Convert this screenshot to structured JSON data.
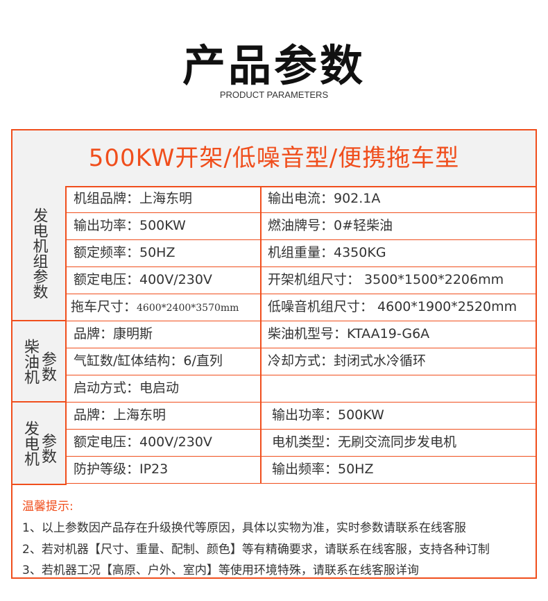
{
  "header": {
    "title": "产品参数",
    "subtitle": "PRODUCT PARAMETERS"
  },
  "table": {
    "heading": "500KW开架/低噪音型/便携拖车型",
    "groups": [
      {
        "label": "发电机组参数",
        "rows": [
          [
            "机组品牌：上海东明",
            "输出电流：902.1A"
          ],
          [
            "输出功率：500KW",
            "燃油牌号：0#轻柴油"
          ],
          [
            "额定频率：50HZ",
            "机组重量：4350KG"
          ],
          [
            "额定电压：400V/230V",
            "开架机组尺寸：  3500*1500*2206mm"
          ],
          [
            "拖车尺寸：",
            "低噪音机组尺寸：  4600*1900*2520mm"
          ]
        ],
        "trailer_size": "4600*2400*3570mm"
      },
      {
        "label_a": "柴油机",
        "label_b": "参数",
        "rows": [
          [
            "品牌：康明斯",
            "柴油机型号：KTAA19-G6A"
          ],
          [
            "气缸数/缸体结构：6/直列",
            "冷却方式：封闭式水冷循环"
          ],
          [
            "启动方式：电启动",
            ""
          ]
        ]
      },
      {
        "label_a": "发电机",
        "label_b": "参数",
        "rows": [
          [
            "品牌：上海东明",
            "输出功率：500KW"
          ],
          [
            "额定电压：400V/230V",
            "电机类型：无刷交流同步发电机"
          ],
          [
            "防护等级：IP23",
            "输出频率：50HZ"
          ]
        ]
      }
    ]
  },
  "notes": {
    "title": "温馨提示:",
    "lines": [
      "1、以上参数因产品存在升级换代等原因，具体以实物为准，实时参数请联系在线客服",
      "2、若对机器【尺寸、重量、配制、颜色】等有精确要求，请联系在线客服，支持各种订制",
      "3、若机器工况【高原、户外、室内】等使用环境特殊，请联系在线客服详询"
    ]
  },
  "colors": {
    "accent": "#f04e1c",
    "label_bg": "#f2f2f2"
  }
}
